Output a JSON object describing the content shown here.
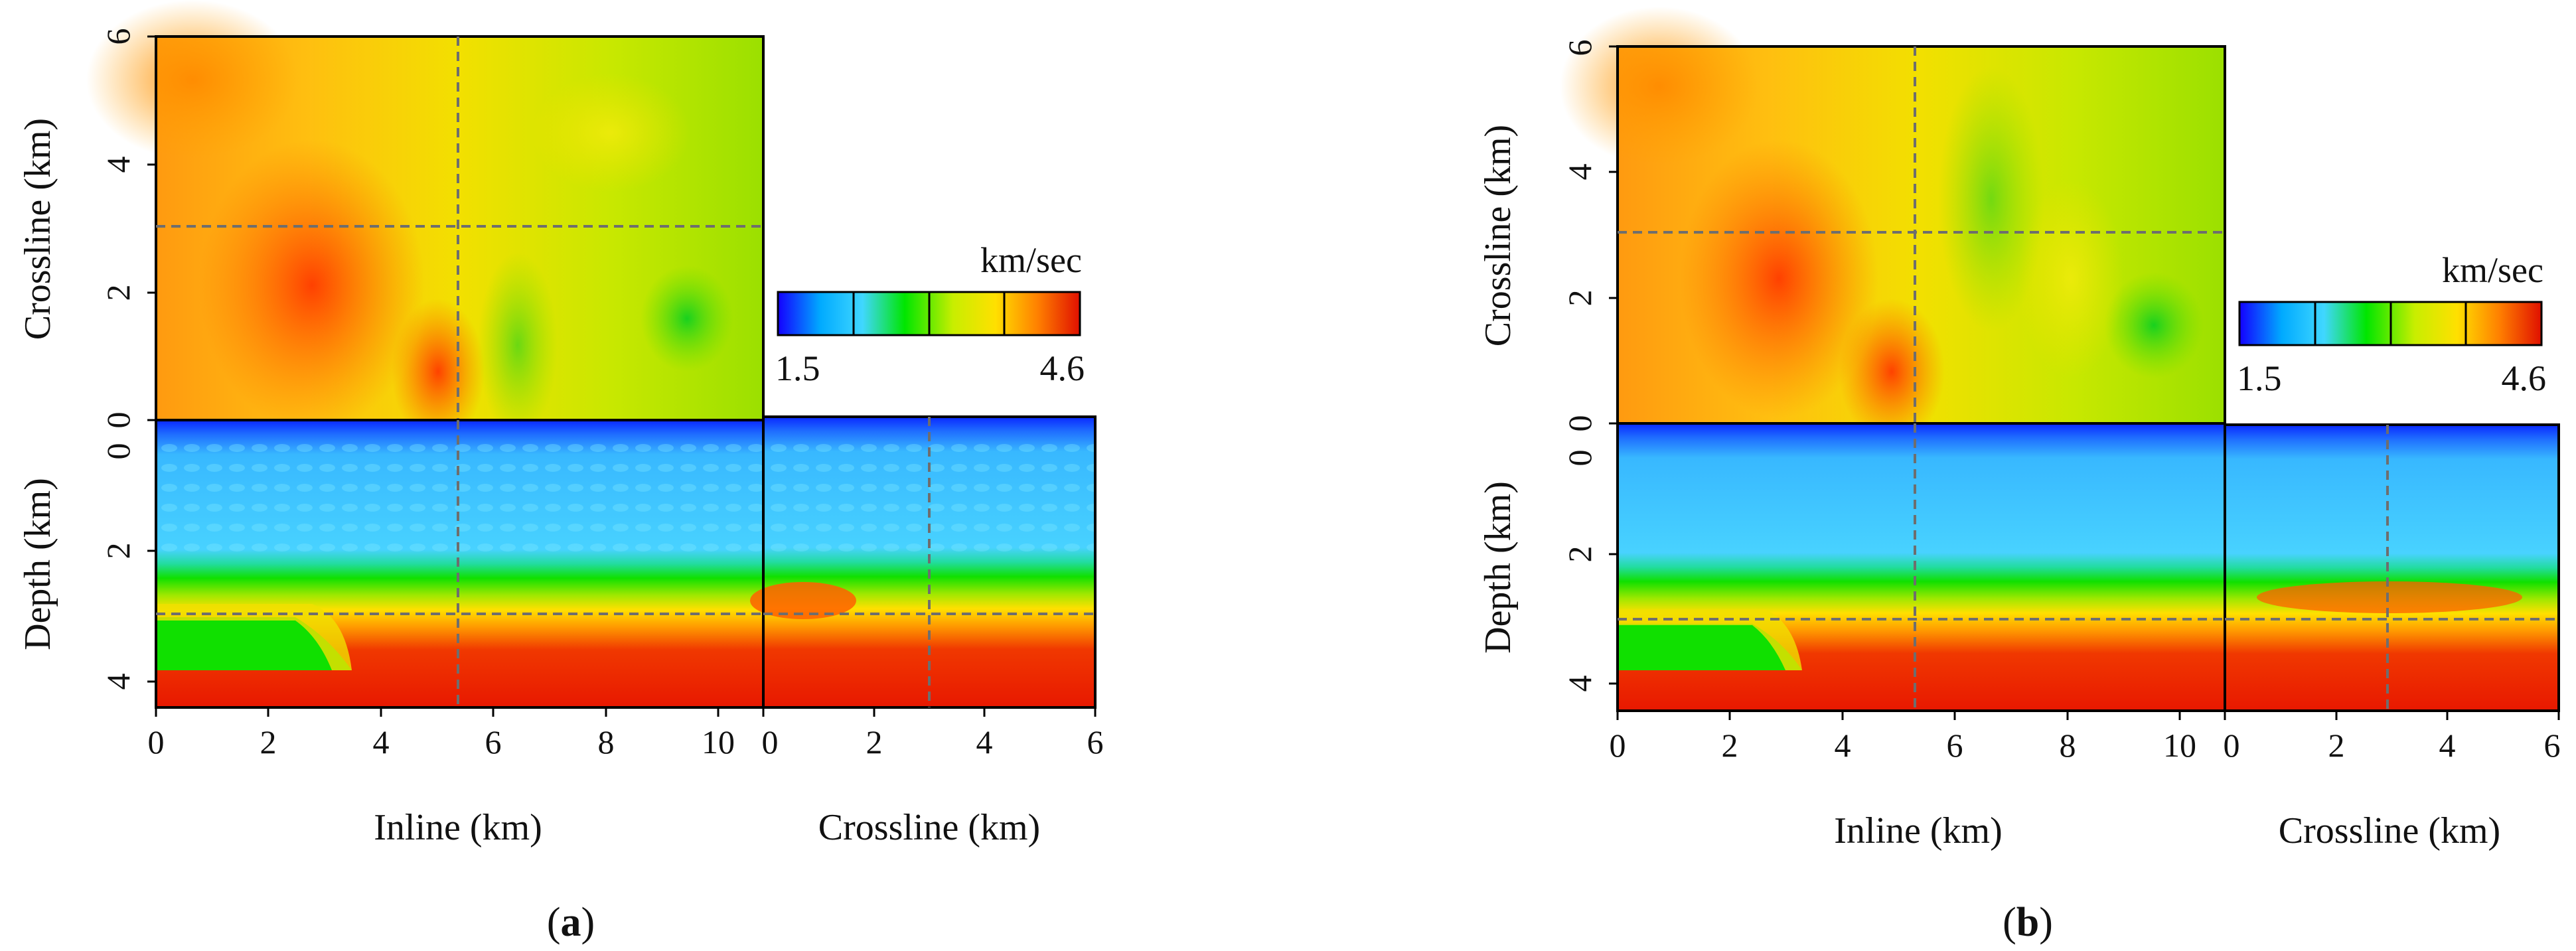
{
  "colors": {
    "ramp": [
      "#1400ff",
      "#00aaff",
      "#40d7ff",
      "#00e600",
      "#c8ee00",
      "#ffe000",
      "#ff8000",
      "#e01000"
    ],
    "crosshair": "#6e6e6e",
    "frame": "#000000"
  },
  "chart_data": [
    {
      "type": "heatmap",
      "panel_label": "(a)",
      "panel_letter": "a",
      "colorbar": {
        "unit": "km/sec",
        "min_label": "1.5",
        "max_label": "4.6",
        "vmin": 1.5,
        "vmax": 4.6
      },
      "depth_slice": {
        "ylabel": "Crossline (km)",
        "y_ticks": [
          "0",
          "2",
          "4",
          "6"
        ],
        "ylim": [
          0,
          6
        ],
        "crossline_marker_km": 3.05
      },
      "inline_section": {
        "ylabel": "Depth (km)",
        "xlabel": "Inline (km)",
        "x_ticks": [
          "0",
          "2",
          "4",
          "6",
          "8",
          "10"
        ],
        "y_ticks": [
          "0",
          "2",
          "4"
        ],
        "xlim": [
          0,
          10.8
        ],
        "ylim": [
          0,
          4.4
        ],
        "inline_marker_km": 5.4,
        "depth_marker_km": 3.0
      },
      "crossline_section": {
        "xlabel": "Crossline (km)",
        "x_ticks": [
          "0",
          "2",
          "4",
          "6"
        ],
        "xlim": [
          0,
          6
        ],
        "crossline_marker_km": 2.95
      }
    },
    {
      "type": "heatmap",
      "panel_label": "(b)",
      "panel_letter": "b",
      "colorbar": {
        "unit": "km/sec",
        "min_label": "1.5",
        "max_label": "4.6",
        "vmin": 1.5,
        "vmax": 4.6
      },
      "depth_slice": {
        "ylabel": "Crossline (km)",
        "y_ticks": [
          "0",
          "2",
          "4",
          "6"
        ],
        "ylim": [
          0,
          6
        ],
        "crossline_marker_km": 3.05
      },
      "inline_section": {
        "ylabel": "Depth (km)",
        "xlabel": "Inline (km)",
        "x_ticks": [
          "0",
          "2",
          "4",
          "6",
          "8",
          "10"
        ],
        "y_ticks": [
          "0",
          "2",
          "4"
        ],
        "xlim": [
          0,
          10.8
        ],
        "ylim": [
          0,
          4.4
        ],
        "inline_marker_km": 5.4,
        "depth_marker_km": 3.0
      },
      "crossline_section": {
        "xlabel": "Crossline (km)",
        "x_ticks": [
          "0",
          "2",
          "4",
          "6"
        ],
        "xlim": [
          0,
          6
        ],
        "crossline_marker_km": 2.95
      }
    }
  ]
}
